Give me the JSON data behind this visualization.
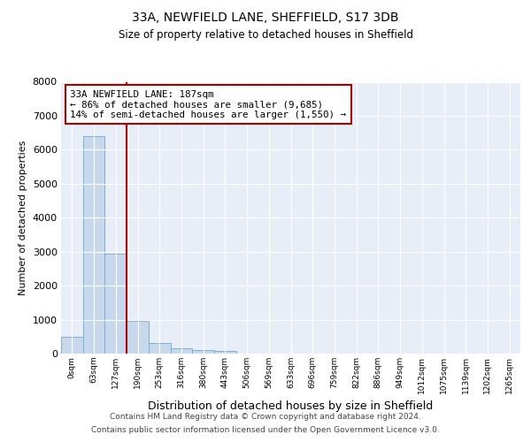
{
  "title1": "33A, NEWFIELD LANE, SHEFFIELD, S17 3DB",
  "title2": "Size of property relative to detached houses in Sheffield",
  "xlabel": "Distribution of detached houses by size in Sheffield",
  "ylabel": "Number of detached properties",
  "bin_labels": [
    "0sqm",
    "63sqm",
    "127sqm",
    "190sqm",
    "253sqm",
    "316sqm",
    "380sqm",
    "443sqm",
    "506sqm",
    "569sqm",
    "633sqm",
    "696sqm",
    "759sqm",
    "822sqm",
    "886sqm",
    "949sqm",
    "1012sqm",
    "1075sqm",
    "1139sqm",
    "1202sqm",
    "1265sqm"
  ],
  "bar_values": [
    490,
    6390,
    2950,
    975,
    320,
    150,
    100,
    70,
    0,
    0,
    0,
    0,
    0,
    0,
    0,
    0,
    0,
    0,
    0,
    0,
    0
  ],
  "bar_color": "#c8d8ec",
  "bar_edge_color": "#7bafd4",
  "property_size_bin": 3,
  "property_label": "33A NEWFIELD LANE: 187sqm",
  "annotation_line1": "← 86% of detached houses are smaller (9,685)",
  "annotation_line2": "14% of semi-detached houses are larger (1,550) →",
  "vline_color": "#aa0000",
  "annotation_box_color": "#aa0000",
  "ylim": [
    0,
    8000
  ],
  "yticks": [
    0,
    1000,
    2000,
    3000,
    4000,
    5000,
    6000,
    7000,
    8000
  ],
  "bin_width": 63,
  "footer1": "Contains HM Land Registry data © Crown copyright and database right 2024.",
  "footer2": "Contains public sector information licensed under the Open Government Licence v3.0.",
  "bg_color": "#e8eef8",
  "grid_color": "white"
}
